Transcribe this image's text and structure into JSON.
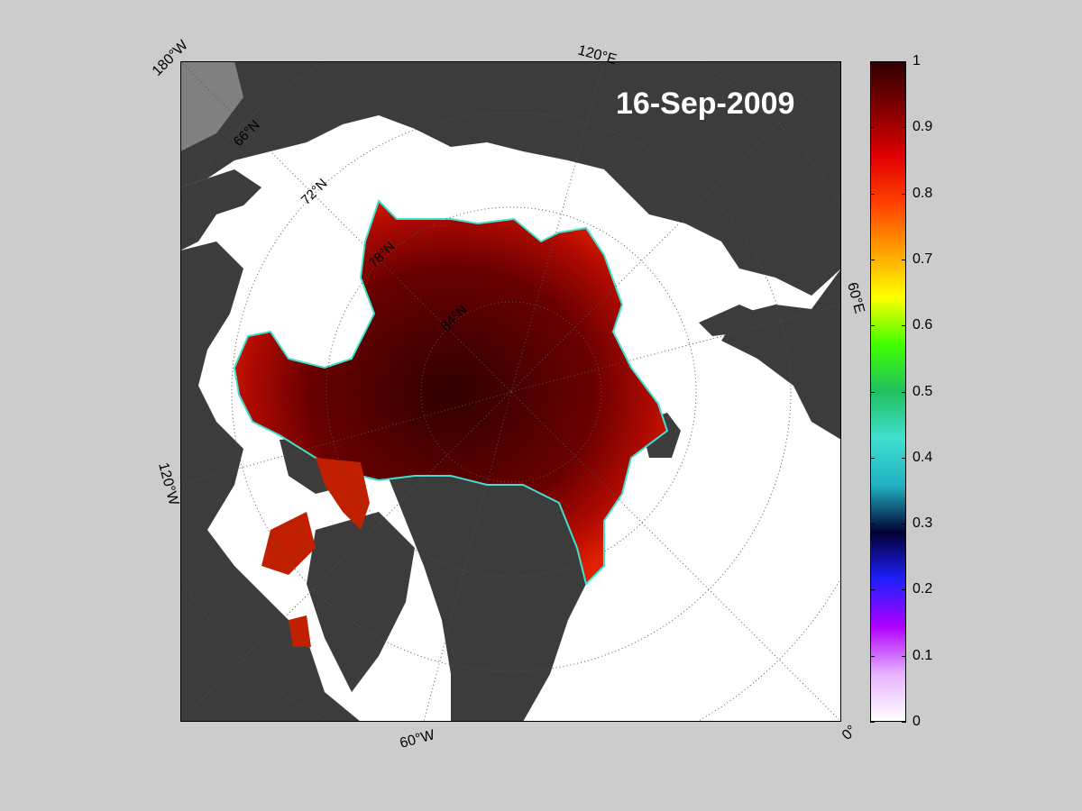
{
  "date": "16-Sep-2009",
  "longitude_labels": [
    "180°W",
    "120°E",
    "60°E",
    "0°",
    "60°W",
    "120°W"
  ],
  "latitude_labels": [
    "66°N",
    "72°N",
    "78°N",
    "84°N"
  ],
  "colorbar": {
    "ticks": [
      "1",
      "0.9",
      "0.8",
      "0.7",
      "0.6",
      "0.5",
      "0.4",
      "0.3",
      "0.2",
      "0.1",
      "0"
    ],
    "range": [
      0,
      1
    ],
    "stops": [
      "#ffffff",
      "#e6b3ff",
      "#b000ff",
      "#2020ff",
      "#000033",
      "#20b0c0",
      "#40e0d0",
      "#20c060",
      "#40ff00",
      "#ffff00",
      "#ffa000",
      "#ff4000",
      "#e00000",
      "#800000",
      "#300000"
    ]
  },
  "colors": {
    "background": "#cccccc",
    "land": "#3c3c3c",
    "ice_free_ocean": "#ffffff",
    "ice_core": "#5a0000",
    "ice_edge": "#cc1a00"
  }
}
